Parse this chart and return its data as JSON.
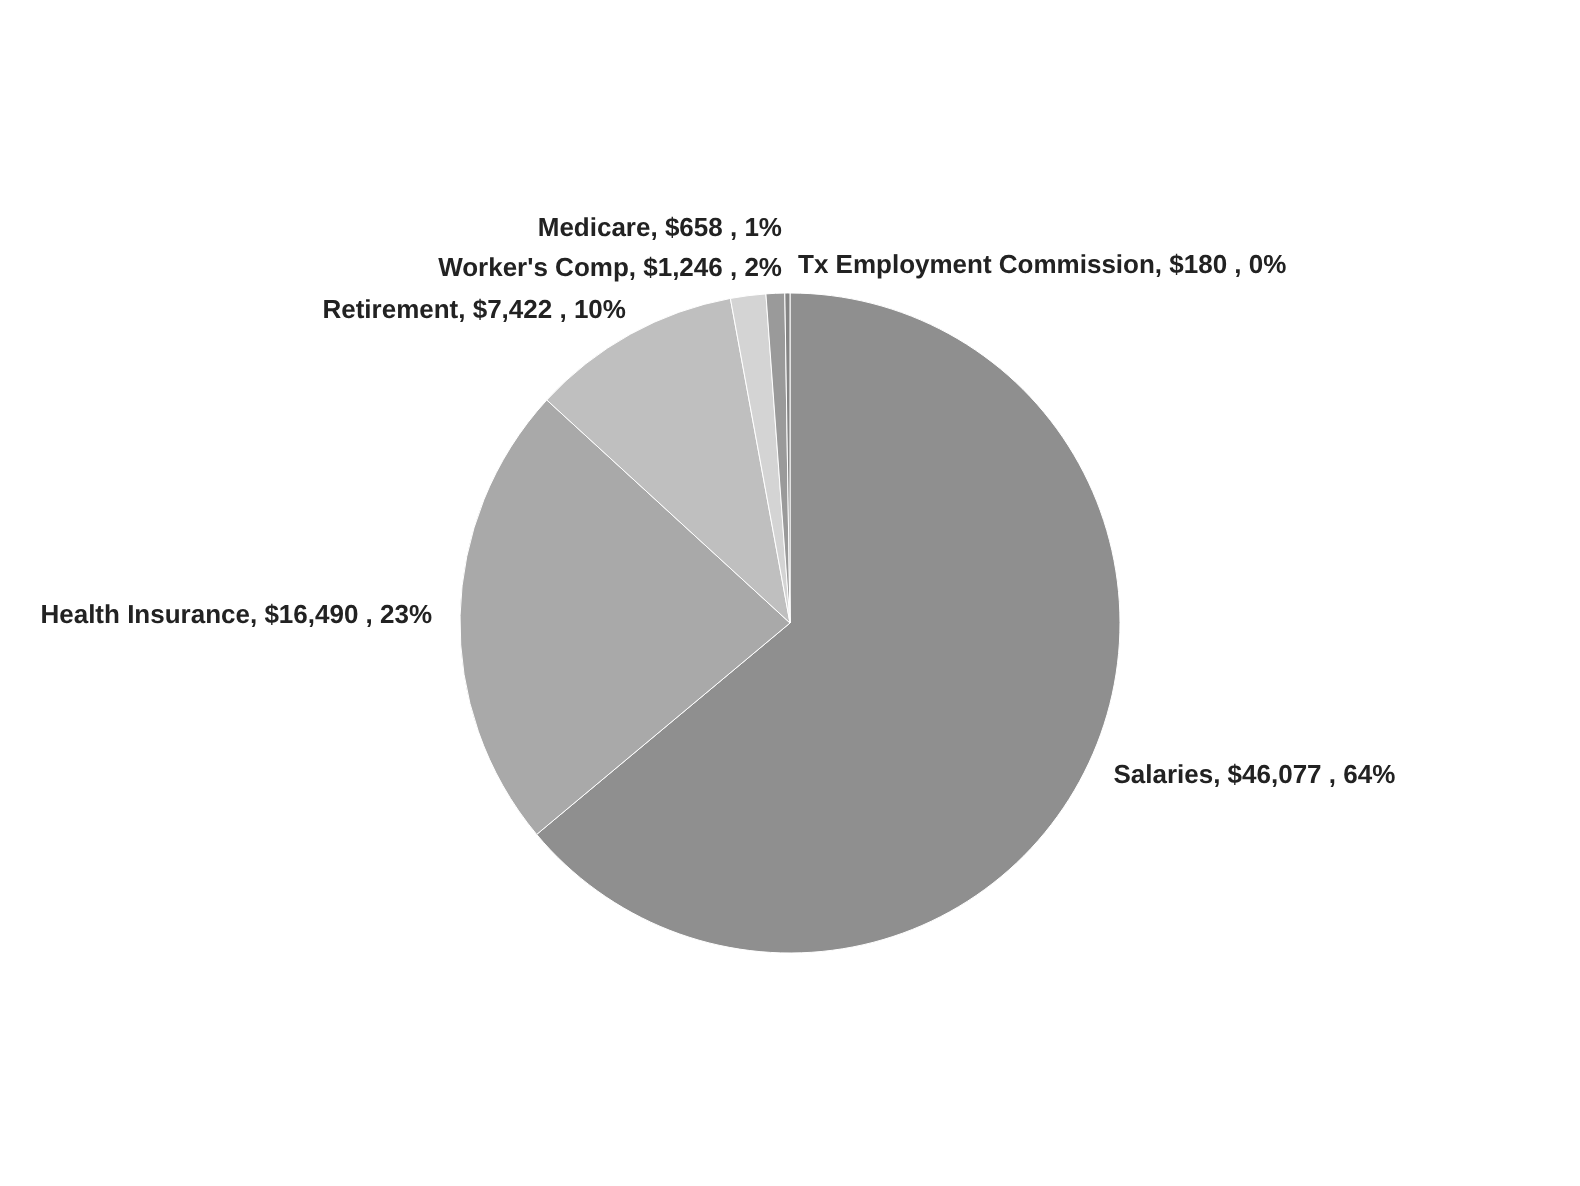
{
  "chart_data": {
    "type": "pie",
    "categories": [
      "Salaries",
      "Health Insurance",
      "Retirement",
      "Worker's Comp",
      "Medicare",
      "Tx Employment Commission"
    ],
    "values": [
      46077,
      16490,
      7422,
      1246,
      658,
      180
    ],
    "value_labels": [
      "$46,077 , 64%",
      "$16,490 , 23%",
      "$7,422 , 10%",
      "$1,246 , 2%",
      "$658 , 1%",
      "$180 , 0%"
    ],
    "colors": [
      "#8f8f8f",
      "#a9a9a9",
      "#bfbfbf",
      "#d4d4d4",
      "#9a9a9a",
      "#858585"
    ]
  }
}
